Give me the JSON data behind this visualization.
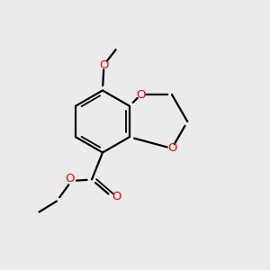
{
  "bg_color": "#ebebeb",
  "bond_color": "#000000",
  "oxygen_color": "#ff0000",
  "line_width": 1.6,
  "figsize": [
    3.0,
    3.0
  ],
  "dpi": 100,
  "bx": 0.38,
  "by": 0.55,
  "r": 0.115
}
